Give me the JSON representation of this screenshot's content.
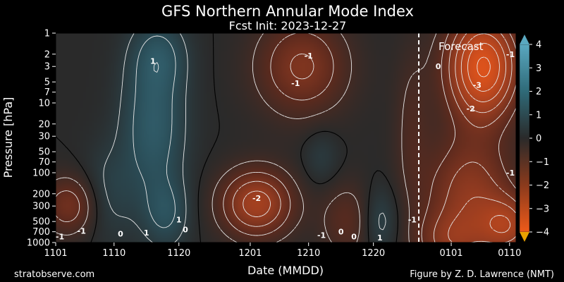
{
  "chart_data": {
    "type": "heatmap",
    "title": "GFS Northern Annular Mode Index",
    "subtitle": "Fcst Init: 2023-12-27",
    "xlabel": "Date (MMDD)",
    "ylabel": "Pressure [hPa]",
    "y_scale": "log",
    "y_inverted": true,
    "ylim": [
      1000,
      1
    ],
    "x_range": [
      "2023-11-01",
      "2024-01-11"
    ],
    "x_ticks": [
      "1101",
      "1110",
      "1120",
      "1201",
      "1210",
      "1220",
      "0101",
      "0110"
    ],
    "y_ticks": [
      1,
      2,
      3,
      5,
      7,
      10,
      20,
      30,
      50,
      70,
      100,
      200,
      300,
      500,
      700,
      1000
    ],
    "colorbar": {
      "range": [
        -4,
        4
      ],
      "ticks": [
        4,
        3,
        2,
        1,
        0,
        -1,
        -2,
        -3,
        -4
      ],
      "low_color": "#e8a000",
      "mid_color": "#2a2a2a",
      "high_color": "#5aa8c0"
    },
    "forecast_start": "2023-12-27",
    "forecast_label": "Forecast",
    "contour_labels": [
      {
        "date": "2023-11-16",
        "p": 2.5,
        "text": "1"
      },
      {
        "date": "2023-12-02",
        "p": 230,
        "text": "-2"
      },
      {
        "date": "2023-12-10",
        "p": 2.1,
        "text": "-1"
      },
      {
        "date": "2023-12-08",
        "p": 5.2,
        "text": "-1"
      },
      {
        "date": "2023-11-20",
        "p": 470,
        "text": "1"
      },
      {
        "date": "2023-11-21",
        "p": 650,
        "text": "0"
      },
      {
        "date": "2023-11-11",
        "p": 750,
        "text": "0"
      },
      {
        "date": "2023-11-05",
        "p": 680,
        "text": "-1"
      },
      {
        "date": "2023-11-01",
        "p": 820,
        "text": "-1"
      },
      {
        "date": "2023-11-15",
        "p": 720,
        "text": "1"
      },
      {
        "date": "2023-12-12",
        "p": 780,
        "text": "-1"
      },
      {
        "date": "2023-12-15",
        "p": 700,
        "text": "0"
      },
      {
        "date": "2023-12-17",
        "p": 820,
        "text": "0"
      },
      {
        "date": "2023-12-21",
        "p": 850,
        "text": "1"
      },
      {
        "date": "2023-12-26",
        "p": 470,
        "text": "-1"
      },
      {
        "date": "2023-12-30",
        "p": 3.0,
        "text": "0"
      },
      {
        "date": "2024-01-05",
        "p": 5.5,
        "text": "-3"
      },
      {
        "date": "2024-01-04",
        "p": 12,
        "text": "-2"
      },
      {
        "date": "2024-01-11",
        "p": 100,
        "text": "-1"
      },
      {
        "date": "2024-01-11",
        "p": 2.0,
        "text": "-1"
      }
    ],
    "field_components": [
      {
        "date": "2023-11-16",
        "p": 20,
        "value": 1.4,
        "sd_days": 3.5,
        "sd_decades": 0.8
      },
      {
        "date": "2023-11-17",
        "p": 2,
        "value": 0.8,
        "sd_days": 3,
        "sd_decades": 0.35
      },
      {
        "date": "2023-11-18",
        "p": 400,
        "value": 0.9,
        "sd_days": 2.5,
        "sd_decades": 0.35
      },
      {
        "date": "2023-11-09",
        "p": 200,
        "value": 0.6,
        "sd_days": 3,
        "sd_decades": 0.5
      },
      {
        "date": "2023-11-03",
        "p": 300,
        "value": -1.4,
        "sd_days": 3,
        "sd_decades": 0.3
      },
      {
        "date": "2023-12-02",
        "p": 280,
        "value": -2.3,
        "sd_days": 4,
        "sd_decades": 0.35
      },
      {
        "date": "2023-12-09",
        "p": 3,
        "value": -1.6,
        "sd_days": 5,
        "sd_decades": 0.5
      },
      {
        "date": "2023-12-12",
        "p": 60,
        "value": 0.5,
        "sd_days": 2,
        "sd_decades": 0.3
      },
      {
        "date": "2023-12-21",
        "p": 500,
        "value": 0.8,
        "sd_days": 2,
        "sd_decades": 0.35
      },
      {
        "date": "2023-12-16",
        "p": 500,
        "value": -0.9,
        "sd_days": 3,
        "sd_decades": 0.4
      },
      {
        "date": "2023-12-26",
        "p": 20,
        "value": -0.6,
        "sd_days": 2,
        "sd_decades": 0.8
      },
      {
        "date": "2024-01-06",
        "p": 3,
        "value": -3.6,
        "sd_days": 4,
        "sd_decades": 0.55
      },
      {
        "date": "2024-01-04",
        "p": 200,
        "value": -1.8,
        "sd_days": 5,
        "sd_decades": 0.6
      },
      {
        "date": "2024-01-10",
        "p": 600,
        "value": -1.8,
        "sd_days": 3,
        "sd_decades": 0.3
      },
      {
        "date": "2024-01-01",
        "p": 1000,
        "value": -1.2,
        "sd_days": 4,
        "sd_decades": 0.3
      }
    ]
  },
  "credits": {
    "left": "stratobserve.com",
    "right": "Figure by Z. D. Lawrence (NMT)"
  }
}
